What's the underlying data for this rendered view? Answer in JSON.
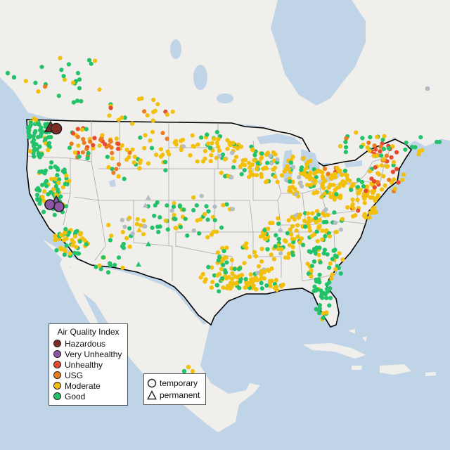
{
  "legend": {
    "title": "Air Quality Index",
    "items": [
      {
        "label": "Hazardous",
        "color": "#7e2d25"
      },
      {
        "label": "Very Unhealthy",
        "color": "#8e54a5"
      },
      {
        "label": "Unhealthy",
        "color": "#e84a2f"
      },
      {
        "label": "USG",
        "color": "#ec7c1c"
      },
      {
        "label": "Moderate",
        "color": "#f2c00b"
      },
      {
        "label": "Good",
        "color": "#22c26a"
      }
    ],
    "no_data_color": "#b4bcc4"
  },
  "marker_legend": {
    "temporary_label": "temporary",
    "permanent_label": "permanent"
  },
  "colors": {
    "water": "#bfd4e6",
    "land": "#f1efec",
    "usa_land": "#f1efec",
    "land_green": "#dde6d4",
    "border": "#000000",
    "state_line": "#a8a8a8"
  }
}
